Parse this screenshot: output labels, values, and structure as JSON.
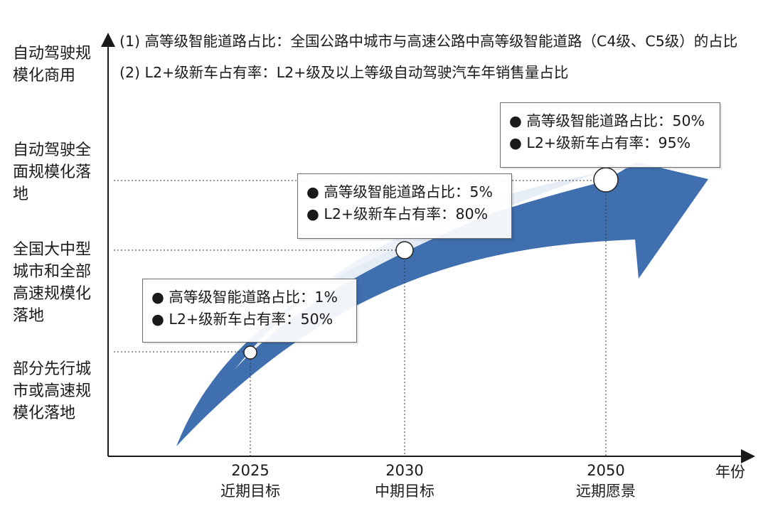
{
  "stages": [
    "自动驾驶规模化商用",
    "自动驾驶全面规模化落地",
    "全国大中型城市和全部高速规模化落地",
    "部分先行城市或高速规模化落地"
  ],
  "notes": [
    "(1) 高等级智能道路占比：全国公路中城市与高速公路中高等级智能道路（C4级、C5级）的占比",
    "(2) L2+级新车占有率：L2+级及以上等级自动驾驶汽车年销售量占比"
  ],
  "x_axis_name": "年份",
  "milestones": [
    {
      "year": "2025",
      "label": "近期目标",
      "road": "● 高等级智能道路占比：1%",
      "car": "● L2+级新车占有率：50%"
    },
    {
      "year": "2030",
      "label": "中期目标",
      "road": "● 高等级智能道路占比：5%",
      "car": "● L2+级新车占有率：80%"
    },
    {
      "year": "2050",
      "label": "远期愿景",
      "road": "● 高等级智能道路占比：50%",
      "car": "● L2+级新车占有率：95%"
    }
  ],
  "colors": {
    "arrow": "#3f6fae",
    "highlight": "#e6eef8",
    "axis": "#1a1a1a",
    "guide": "#333333"
  }
}
